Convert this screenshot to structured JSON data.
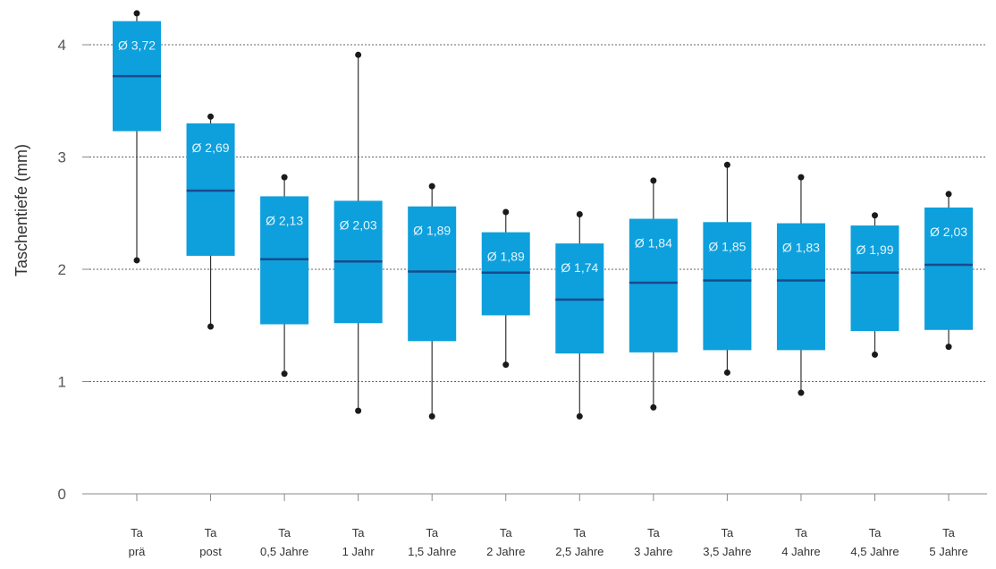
{
  "chart_data": {
    "type": "boxplot",
    "ylabel": "Taschentiefe (mm)",
    "ylim": [
      0,
      4.3
    ],
    "yticks": [
      "0",
      "1",
      "2",
      "3",
      "4"
    ],
    "grid": "horizontal-dashed",
    "box_color": "#0da0dc",
    "median_color": "#1a4a8c",
    "categories": [
      [
        "Ta",
        "prä"
      ],
      [
        "Ta",
        "post"
      ],
      [
        "Ta",
        "0,5 Jahre"
      ],
      [
        "Ta",
        "1 Jahr"
      ],
      [
        "Ta",
        "1,5 Jahre"
      ],
      [
        "Ta",
        "2 Jahre"
      ],
      [
        "Ta",
        "2,5 Jahre"
      ],
      [
        "Ta",
        "3 Jahre"
      ],
      [
        "Ta",
        "3,5 Jahre"
      ],
      [
        "Ta",
        "4 Jahre"
      ],
      [
        "Ta",
        "4,5 Jahre"
      ],
      [
        "Ta",
        "5 Jahre"
      ]
    ],
    "boxes": [
      {
        "min": 2.08,
        "q1": 3.23,
        "median": 3.72,
        "q3": 4.21,
        "max": 4.28,
        "mean_label": "Ø 3,72"
      },
      {
        "min": 1.49,
        "q1": 2.12,
        "median": 2.7,
        "q3": 3.3,
        "max": 3.36,
        "mean_label": "Ø 2,69"
      },
      {
        "min": 1.07,
        "q1": 1.51,
        "median": 2.09,
        "q3": 2.65,
        "max": 2.82,
        "mean_label": "Ø 2,13"
      },
      {
        "min": 0.74,
        "q1": 1.52,
        "median": 2.07,
        "q3": 2.61,
        "max": 3.91,
        "mean_label": "Ø 2,03"
      },
      {
        "min": 0.69,
        "q1": 1.36,
        "median": 1.98,
        "q3": 2.56,
        "max": 2.74,
        "mean_label": "Ø 1,89"
      },
      {
        "min": 1.15,
        "q1": 1.59,
        "median": 1.97,
        "q3": 2.33,
        "max": 2.51,
        "mean_label": "Ø 1,89"
      },
      {
        "min": 0.69,
        "q1": 1.25,
        "median": 1.73,
        "q3": 2.23,
        "max": 2.49,
        "mean_label": "Ø 1,74"
      },
      {
        "min": 0.77,
        "q1": 1.26,
        "median": 1.88,
        "q3": 2.45,
        "max": 2.79,
        "mean_label": "Ø 1,84"
      },
      {
        "min": 1.08,
        "q1": 1.28,
        "median": 1.9,
        "q3": 2.42,
        "max": 2.93,
        "mean_label": "Ø 1,85"
      },
      {
        "min": 0.9,
        "q1": 1.28,
        "median": 1.9,
        "q3": 2.41,
        "max": 2.82,
        "mean_label": "Ø 1,83"
      },
      {
        "min": 1.24,
        "q1": 1.45,
        "median": 1.97,
        "q3": 2.39,
        "max": 2.48,
        "mean_label": "Ø 1,99"
      },
      {
        "min": 1.31,
        "q1": 1.46,
        "median": 2.04,
        "q3": 2.55,
        "max": 2.67,
        "mean_label": "Ø 2,03"
      }
    ]
  }
}
